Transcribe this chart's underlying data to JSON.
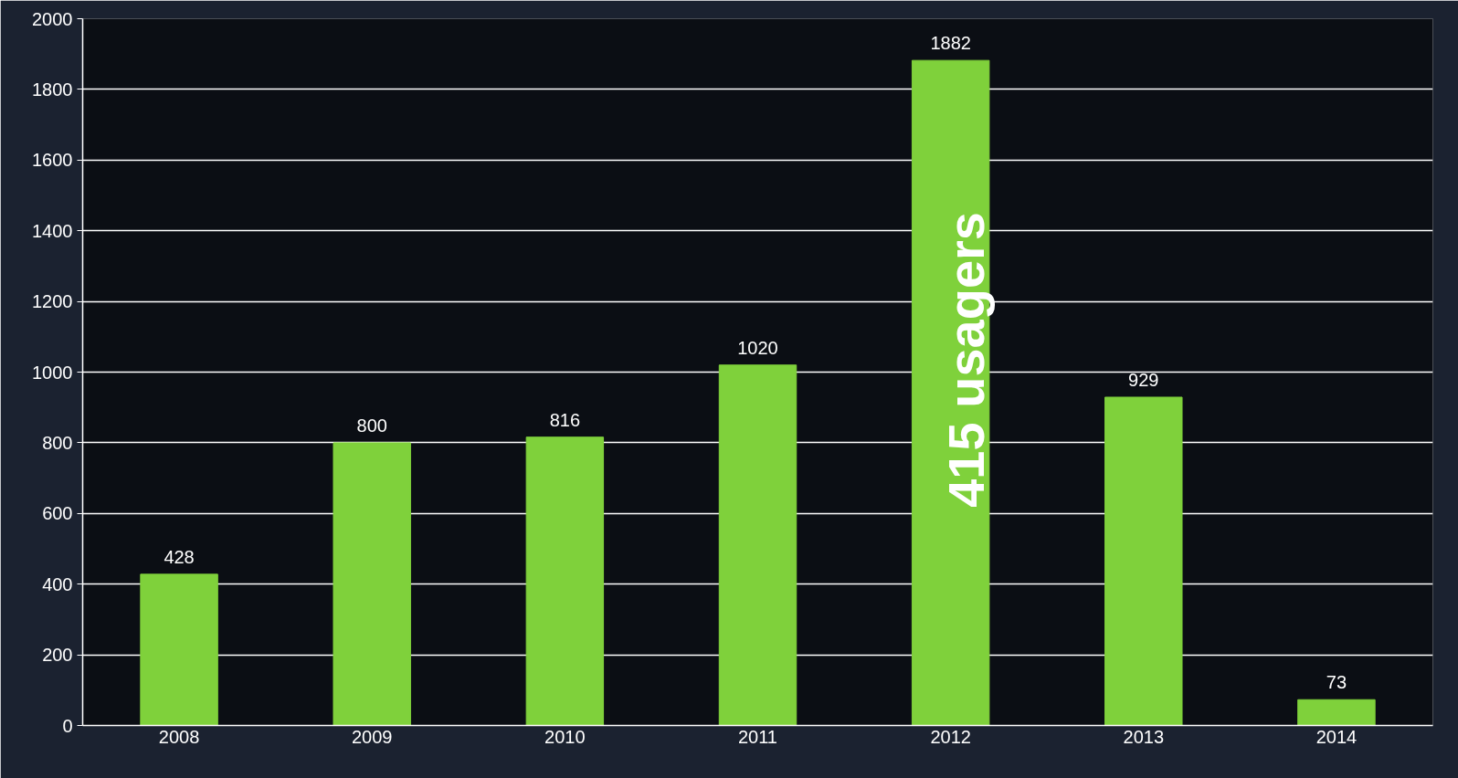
{
  "chart_data": {
    "type": "bar",
    "categories": [
      "2008",
      "2009",
      "2010",
      "2011",
      "2012",
      "2013",
      "2014"
    ],
    "values": [
      428,
      800,
      816,
      1020,
      1882,
      929,
      73
    ],
    "color": "#7fd13b",
    "ylim": [
      0,
      2000
    ],
    "yticks": [
      0,
      200,
      400,
      600,
      800,
      1000,
      1200,
      1400,
      1600,
      1800,
      2000
    ],
    "grid": "y",
    "data_labels": true,
    "annotations": [
      "415 usagers"
    ]
  }
}
